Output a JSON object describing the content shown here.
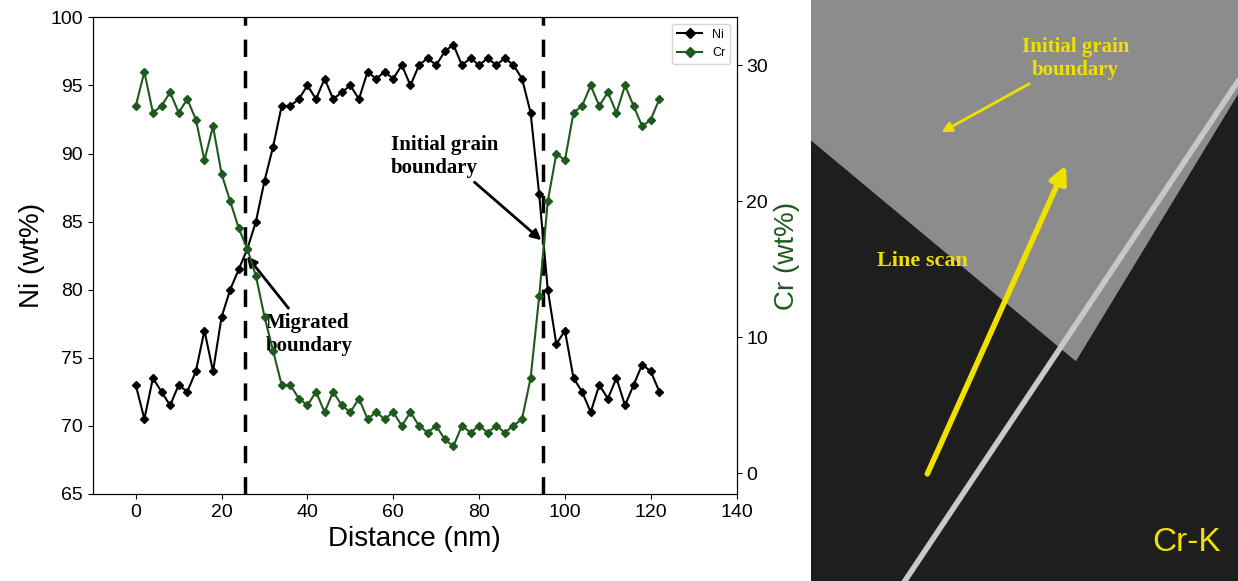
{
  "chart_data": {
    "type": "line",
    "x": [
      0,
      2,
      4,
      6,
      8,
      10,
      12,
      14,
      16,
      18,
      20,
      22,
      24,
      26,
      28,
      30,
      32,
      34,
      36,
      38,
      40,
      42,
      44,
      46,
      48,
      50,
      52,
      54,
      56,
      58,
      60,
      62,
      64,
      66,
      68,
      70,
      72,
      74,
      76,
      78,
      80,
      82,
      84,
      86,
      88,
      90,
      92,
      94,
      96,
      98,
      100,
      102,
      104,
      106,
      108,
      110,
      112,
      114,
      116,
      118,
      120,
      122
    ],
    "series": [
      {
        "name": "Ni",
        "color": "#000000",
        "marker": "diamond",
        "line_style": "solid",
        "values": [
          73,
          70.5,
          73.5,
          72.5,
          71.5,
          73,
          72.5,
          74,
          77,
          74,
          78,
          80,
          81.5,
          83,
          85,
          88,
          90.5,
          93.5,
          93.5,
          94,
          95,
          94,
          95.5,
          94,
          94.5,
          95,
          94,
          96,
          95.5,
          96,
          95.5,
          96.5,
          95,
          96.5,
          97,
          96.5,
          97.5,
          98,
          96.5,
          97,
          96.5,
          97,
          96.5,
          97,
          96.5,
          95.5,
          93,
          87,
          80,
          76,
          77,
          73.5,
          72.5,
          71,
          73,
          72,
          73.5,
          71.5,
          73,
          74.5,
          74,
          72.5
        ]
      },
      {
        "name": "Cr",
        "color": "#1e5a1e",
        "marker": "diamond",
        "line_style": "solid",
        "axis": "y2",
        "values": [
          27,
          29.5,
          26.5,
          27,
          28,
          26.5,
          27.5,
          26,
          23,
          25.5,
          22,
          20,
          18,
          16.5,
          14.5,
          11.5,
          9,
          6.5,
          6.5,
          5.5,
          5,
          6,
          4.5,
          6,
          5,
          4.5,
          5.5,
          4,
          4.5,
          4,
          4.5,
          3.5,
          4.5,
          3.5,
          3,
          3.5,
          2.5,
          2,
          3.5,
          3,
          3.5,
          3,
          3.5,
          3,
          3.5,
          4,
          7,
          13,
          20,
          23.5,
          23,
          26.5,
          27,
          28.5,
          27,
          28,
          26.5,
          28.5,
          27,
          25.5,
          26,
          27.5
        ]
      }
    ],
    "xlabel": "Distance (nm)",
    "ylabel": "Ni (wt%)",
    "y2label": "Cr (wt%)",
    "xlim": [
      -10,
      140
    ],
    "xticks": [
      0,
      20,
      40,
      60,
      80,
      100,
      120,
      140
    ],
    "ylim": [
      65,
      100
    ],
    "yticks": [
      65,
      70,
      75,
      80,
      85,
      90,
      95,
      100
    ],
    "y2lim": [
      -1.5,
      33.5
    ],
    "y2ticks": [
      0,
      10,
      20,
      30
    ],
    "legend": "upper right",
    "grid": false,
    "boundaries": [
      {
        "x": 25.5,
        "label": "Migrated\nboundary"
      },
      {
        "x": 95,
        "label": "Initial grain\nboundary"
      }
    ]
  },
  "eds_map": {
    "labels": [
      "Initial grain\nboundary",
      "Line scan"
    ],
    "element": "Cr-K"
  }
}
